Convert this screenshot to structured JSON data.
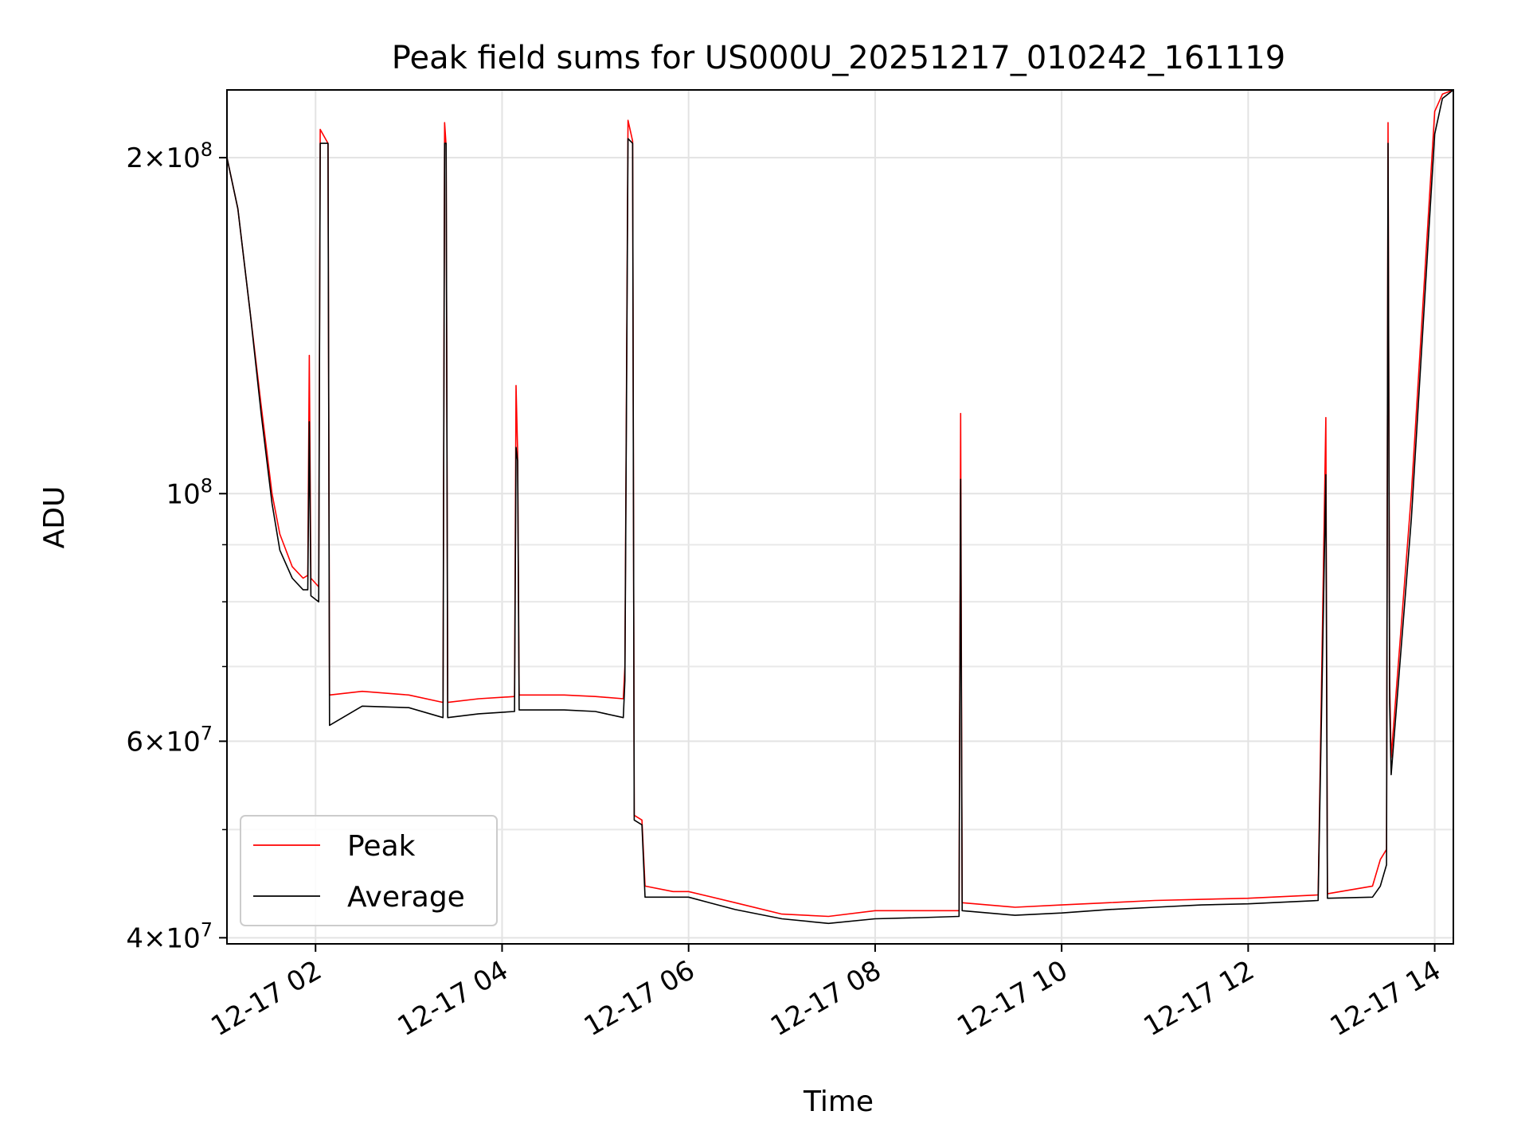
{
  "chart_data": {
    "type": "line",
    "title": "Peak field sums for US000U_20251217_010242_161119",
    "xlabel": "Time",
    "ylabel": "ADU",
    "x_scale": "time",
    "y_scale": "log",
    "xlim": [
      "2025-12-17 01:03",
      "2025-12-17 14:12"
    ],
    "ylim": [
      39500000,
      230000000
    ],
    "grid": true,
    "legend_position": "lower-left",
    "x_ticks": [
      {
        "time": "2025-12-17 02:00",
        "label": "12-17 02"
      },
      {
        "time": "2025-12-17 04:00",
        "label": "12-17 04"
      },
      {
        "time": "2025-12-17 06:00",
        "label": "12-17 06"
      },
      {
        "time": "2025-12-17 08:00",
        "label": "12-17 08"
      },
      {
        "time": "2025-12-17 10:00",
        "label": "12-17 10"
      },
      {
        "time": "2025-12-17 12:00",
        "label": "12-17 12"
      },
      {
        "time": "2025-12-17 14:00",
        "label": "12-17 14"
      }
    ],
    "y_ticks_major": [
      {
        "value": 40000000,
        "mantissa": "4",
        "exponent": "7"
      },
      {
        "value": 60000000,
        "mantissa": "6",
        "exponent": "7"
      },
      {
        "value": 100000000,
        "mantissa": "",
        "exponent": "8"
      },
      {
        "value": 200000000,
        "mantissa": "2",
        "exponent": "8"
      }
    ],
    "y_ticks_minor": [
      50000000,
      70000000,
      80000000,
      90000000
    ],
    "series": [
      {
        "name": "Peak",
        "color": "#ff0000",
        "points": [
          [
            "2025-12-17 01:03",
            200000000
          ],
          [
            "2025-12-17 01:10",
            180000000
          ],
          [
            "2025-12-17 01:18",
            145000000
          ],
          [
            "2025-12-17 01:25",
            120000000
          ],
          [
            "2025-12-17 01:32",
            100000000
          ],
          [
            "2025-12-17 01:37",
            92000000
          ],
          [
            "2025-12-17 01:45",
            86000000
          ],
          [
            "2025-12-17 01:52",
            84000000
          ],
          [
            "2025-12-17 01:55",
            84500000
          ],
          [
            "2025-12-17 01:56",
            133000000
          ],
          [
            "2025-12-17 01:57",
            84000000
          ],
          [
            "2025-12-17 02:02",
            82500000
          ],
          [
            "2025-12-17 02:03",
            212000000
          ],
          [
            "2025-12-17 02:08",
            206000000
          ],
          [
            "2025-12-17 02:09",
            66000000
          ],
          [
            "2025-12-17 02:30",
            66500000
          ],
          [
            "2025-12-17 03:00",
            66000000
          ],
          [
            "2025-12-17 03:22",
            65000000
          ],
          [
            "2025-12-17 03:23",
            215000000
          ],
          [
            "2025-12-17 03:24",
            205000000
          ],
          [
            "2025-12-17 03:25",
            65000000
          ],
          [
            "2025-12-17 03:45",
            65500000
          ],
          [
            "2025-12-17 04:08",
            65800000
          ],
          [
            "2025-12-17 04:09",
            125000000
          ],
          [
            "2025-12-17 04:10",
            109000000
          ],
          [
            "2025-12-17 04:11",
            66000000
          ],
          [
            "2025-12-17 04:40",
            66000000
          ],
          [
            "2025-12-17 05:00",
            65800000
          ],
          [
            "2025-12-17 05:18",
            65500000
          ],
          [
            "2025-12-17 05:19",
            70000000
          ],
          [
            "2025-12-17 05:21",
            216000000
          ],
          [
            "2025-12-17 05:24",
            207000000
          ],
          [
            "2025-12-17 05:25",
            51500000
          ],
          [
            "2025-12-17 05:30",
            51000000
          ],
          [
            "2025-12-17 05:32",
            44500000
          ],
          [
            "2025-12-17 05:50",
            44000000
          ],
          [
            "2025-12-17 06:00",
            44000000
          ],
          [
            "2025-12-17 06:30",
            43000000
          ],
          [
            "2025-12-17 07:00",
            42000000
          ],
          [
            "2025-12-17 07:30",
            41800000
          ],
          [
            "2025-12-17 08:00",
            42300000
          ],
          [
            "2025-12-17 08:30",
            42300000
          ],
          [
            "2025-12-17 08:54",
            42300000
          ],
          [
            "2025-12-17 08:55",
            118000000
          ],
          [
            "2025-12-17 08:56",
            43000000
          ],
          [
            "2025-12-17 09:30",
            42600000
          ],
          [
            "2025-12-17 10:00",
            42800000
          ],
          [
            "2025-12-17 10:30",
            43000000
          ],
          [
            "2025-12-17 11:00",
            43200000
          ],
          [
            "2025-12-17 11:30",
            43300000
          ],
          [
            "2025-12-17 12:00",
            43400000
          ],
          [
            "2025-12-17 12:45",
            43700000
          ],
          [
            "2025-12-17 12:50",
            117000000
          ],
          [
            "2025-12-17 12:51",
            43800000
          ],
          [
            "2025-12-17 13:20",
            44500000
          ],
          [
            "2025-12-17 13:25",
            47000000
          ],
          [
            "2025-12-17 13:29",
            48000000
          ],
          [
            "2025-12-17 13:30",
            215000000
          ],
          [
            "2025-12-17 13:31",
            68000000
          ],
          [
            "2025-12-17 13:32",
            58000000
          ],
          [
            "2025-12-17 13:45",
            100000000
          ],
          [
            "2025-12-17 14:00",
            220000000
          ],
          [
            "2025-12-17 14:05",
            228000000
          ],
          [
            "2025-12-17 14:12",
            230000000
          ]
        ]
      },
      {
        "name": "Average",
        "color": "#000000",
        "points": [
          [
            "2025-12-17 01:03",
            200000000
          ],
          [
            "2025-12-17 01:10",
            180000000
          ],
          [
            "2025-12-17 01:18",
            145000000
          ],
          [
            "2025-12-17 01:25",
            118000000
          ],
          [
            "2025-12-17 01:32",
            98000000
          ],
          [
            "2025-12-17 01:37",
            89000000
          ],
          [
            "2025-12-17 01:45",
            84000000
          ],
          [
            "2025-12-17 01:52",
            82000000
          ],
          [
            "2025-12-17 01:55",
            82000000
          ],
          [
            "2025-12-17 01:56",
            116000000
          ],
          [
            "2025-12-17 01:57",
            81000000
          ],
          [
            "2025-12-17 02:02",
            80000000
          ],
          [
            "2025-12-17 02:03",
            206000000
          ],
          [
            "2025-12-17 02:08",
            206000000
          ],
          [
            "2025-12-17 02:09",
            62000000
          ],
          [
            "2025-12-17 02:30",
            64500000
          ],
          [
            "2025-12-17 03:00",
            64300000
          ],
          [
            "2025-12-17 03:22",
            63000000
          ],
          [
            "2025-12-17 03:23",
            206000000
          ],
          [
            "2025-12-17 03:24",
            206000000
          ],
          [
            "2025-12-17 03:25",
            63000000
          ],
          [
            "2025-12-17 03:45",
            63500000
          ],
          [
            "2025-12-17 04:08",
            63800000
          ],
          [
            "2025-12-17 04:09",
            110000000
          ],
          [
            "2025-12-17 04:10",
            107000000
          ],
          [
            "2025-12-17 04:11",
            64000000
          ],
          [
            "2025-12-17 04:40",
            64000000
          ],
          [
            "2025-12-17 05:00",
            63800000
          ],
          [
            "2025-12-17 05:18",
            63000000
          ],
          [
            "2025-12-17 05:19",
            68000000
          ],
          [
            "2025-12-17 05:21",
            208000000
          ],
          [
            "2025-12-17 05:24",
            206000000
          ],
          [
            "2025-12-17 05:25",
            51000000
          ],
          [
            "2025-12-17 05:30",
            50500000
          ],
          [
            "2025-12-17 05:32",
            43500000
          ],
          [
            "2025-12-17 05:50",
            43500000
          ],
          [
            "2025-12-17 06:00",
            43500000
          ],
          [
            "2025-12-17 06:30",
            42400000
          ],
          [
            "2025-12-17 07:00",
            41600000
          ],
          [
            "2025-12-17 07:30",
            41200000
          ],
          [
            "2025-12-17 08:00",
            41600000
          ],
          [
            "2025-12-17 08:30",
            41700000
          ],
          [
            "2025-12-17 08:54",
            41800000
          ],
          [
            "2025-12-17 08:55",
            103000000
          ],
          [
            "2025-12-17 08:56",
            42300000
          ],
          [
            "2025-12-17 09:30",
            41900000
          ],
          [
            "2025-12-17 10:00",
            42100000
          ],
          [
            "2025-12-17 10:30",
            42400000
          ],
          [
            "2025-12-17 11:00",
            42600000
          ],
          [
            "2025-12-17 11:30",
            42800000
          ],
          [
            "2025-12-17 12:00",
            42900000
          ],
          [
            "2025-12-17 12:45",
            43200000
          ],
          [
            "2025-12-17 12:50",
            104000000
          ],
          [
            "2025-12-17 12:51",
            43400000
          ],
          [
            "2025-12-17 13:20",
            43500000
          ],
          [
            "2025-12-17 13:25",
            44500000
          ],
          [
            "2025-12-17 13:29",
            46500000
          ],
          [
            "2025-12-17 13:30",
            206000000
          ],
          [
            "2025-12-17 13:31",
            65000000
          ],
          [
            "2025-12-17 13:32",
            56000000
          ],
          [
            "2025-12-17 13:45",
            95000000
          ],
          [
            "2025-12-17 14:00",
            210000000
          ],
          [
            "2025-12-17 14:05",
            226000000
          ],
          [
            "2025-12-17 14:12",
            230000000
          ]
        ]
      }
    ]
  }
}
